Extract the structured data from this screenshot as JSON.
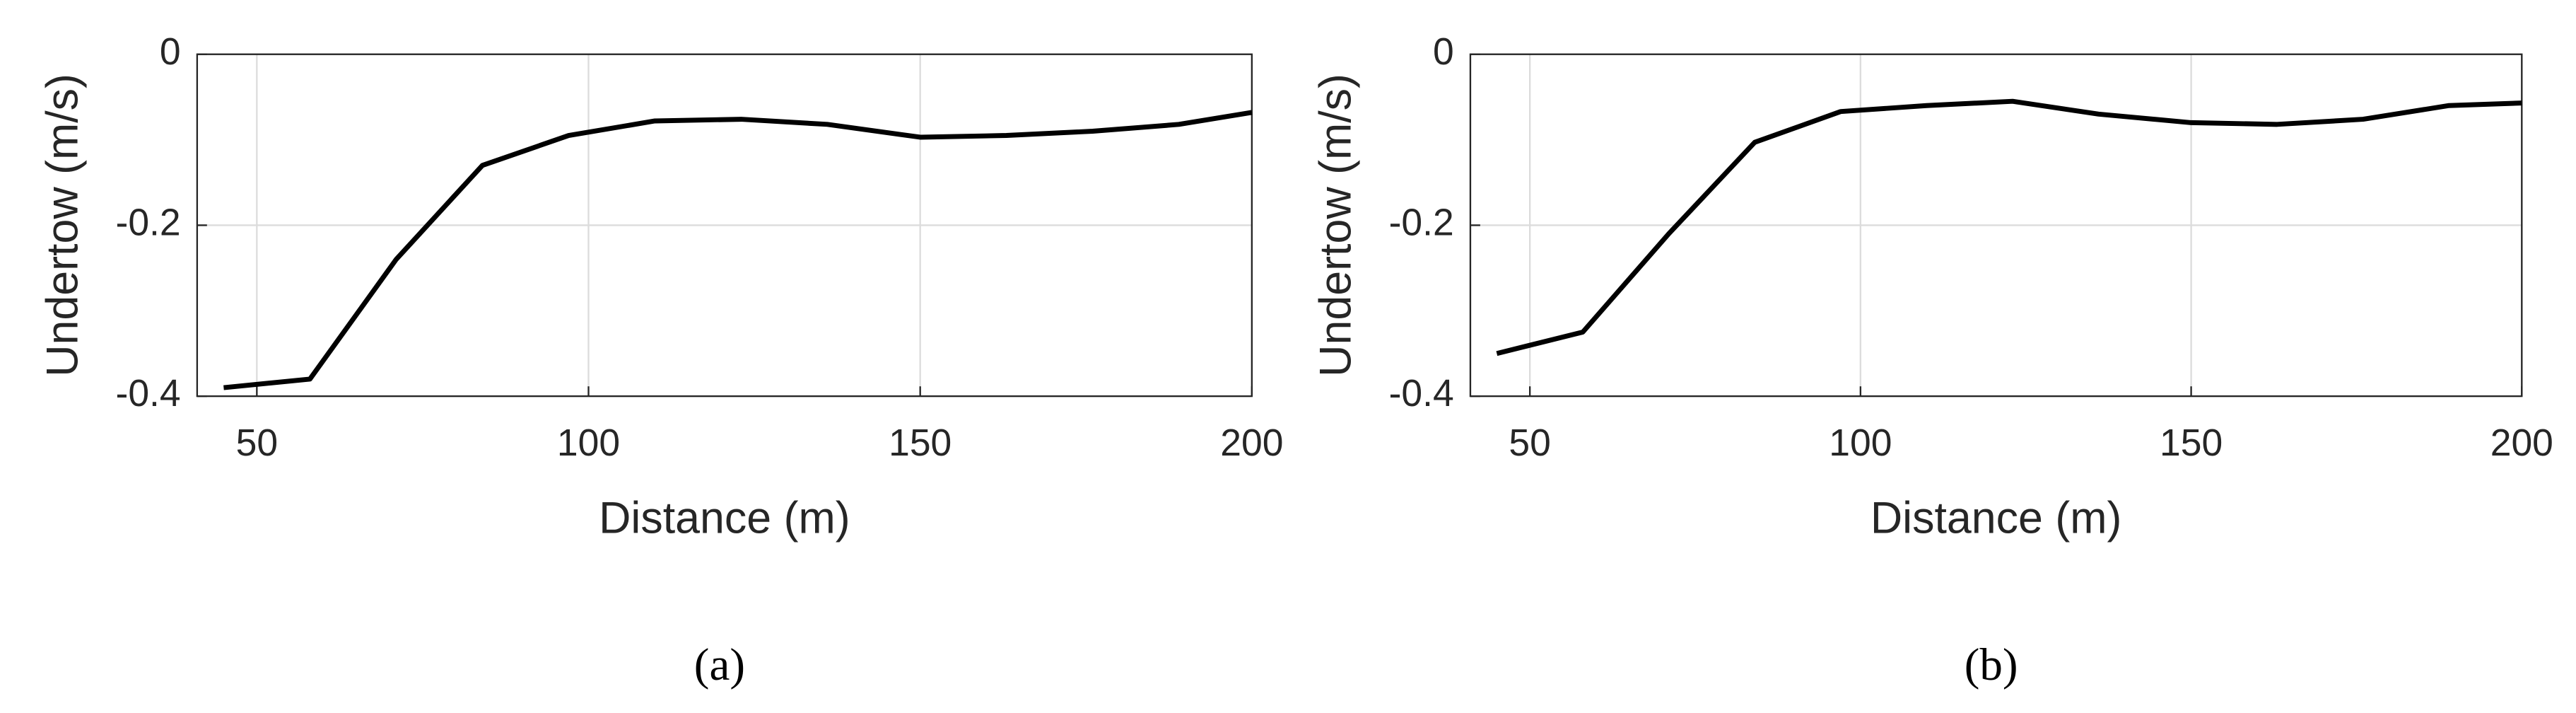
{
  "chart_data": [
    {
      "type": "line",
      "caption": "(a)",
      "xlabel": "Distance (m)",
      "ylabel": "Undertow (m/s)",
      "x": [
        45,
        58,
        71,
        84,
        97,
        110,
        123,
        136,
        150,
        163,
        176,
        189,
        200
      ],
      "series": [
        {
          "color": "#000000",
          "values": [
            -0.39,
            -0.38,
            -0.24,
            -0.13,
            -0.095,
            -0.078,
            -0.076,
            -0.082,
            -0.097,
            -0.095,
            -0.09,
            -0.082,
            -0.068
          ]
        }
      ],
      "xlim": [
        41,
        200
      ],
      "xticks": [
        50,
        100,
        150,
        200
      ],
      "ylim": [
        -0.4,
        0
      ],
      "yticks": [
        0,
        -0.2,
        -0.4
      ],
      "grid": true
    },
    {
      "type": "line",
      "caption": "(b)",
      "xlabel": "Distance (m)",
      "ylabel": "Undertow (m/s)",
      "x": [
        45,
        58,
        71,
        84,
        97,
        110,
        123,
        136,
        150,
        163,
        176,
        189,
        200
      ],
      "series": [
        {
          "color": "#000000",
          "values": [
            -0.35,
            -0.325,
            -0.21,
            -0.103,
            -0.067,
            -0.06,
            -0.055,
            -0.07,
            -0.08,
            -0.082,
            -0.076,
            -0.06,
            -0.057
          ]
        }
      ],
      "xlim": [
        41,
        200
      ],
      "xticks": [
        50,
        100,
        150,
        200
      ],
      "ylim": [
        -0.4,
        0
      ],
      "yticks": [
        0,
        -0.2,
        -0.4
      ],
      "grid": true
    }
  ]
}
